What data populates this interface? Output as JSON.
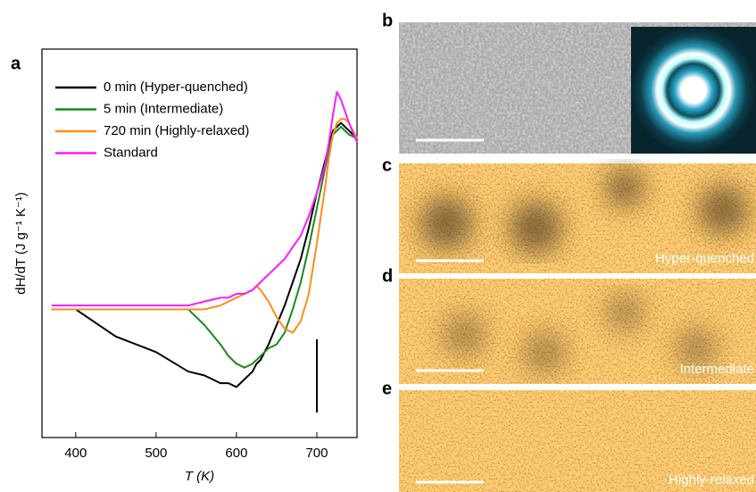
{
  "panel_labels": [
    "a",
    "b",
    "c",
    "d",
    "e"
  ],
  "image_captions": [
    "Hyper-quenched",
    "Intermediate",
    "Highly-relaxed"
  ],
  "chart_data": {
    "type": "line",
    "x_label": "T (K)",
    "y_label": "dH/dT (J g⁻¹ K⁻¹)",
    "xlim": [
      358,
      750
    ],
    "xticks": [
      400,
      500,
      600,
      700
    ],
    "ylim": [
      0,
      100
    ],
    "x": [
      370,
      400,
      450,
      500,
      540,
      560,
      580,
      590,
      600,
      610,
      620,
      625,
      630,
      640,
      650,
      660,
      670,
      680,
      690,
      700,
      710,
      715,
      720,
      725,
      730,
      735,
      740,
      750
    ],
    "series": [
      {
        "name": "0 min (Hyper-quenched)",
        "color": "#000000",
        "values": [
          33,
          33,
          26,
          22,
          17,
          16,
          14,
          14,
          13,
          15,
          17,
          19,
          20,
          24,
          29,
          34,
          40,
          46,
          54,
          63,
          71,
          75,
          79,
          80,
          81,
          80,
          79,
          77
        ]
      },
      {
        "name": "5 min (Intermediate)",
        "color": "#1a8a1a",
        "values": [
          33,
          33,
          33,
          33,
          33,
          29,
          24,
          21,
          19,
          18,
          19,
          20,
          21,
          23,
          24,
          27,
          33,
          40,
          49,
          59,
          69,
          74,
          78,
          79,
          80,
          79,
          78,
          77
        ]
      },
      {
        "name": "720 min (Highly-relaxed)",
        "color": "#ff8c1a",
        "values": [
          33,
          33,
          33,
          33,
          33,
          33,
          34,
          35,
          36,
          37,
          38,
          39,
          38,
          35,
          31,
          28,
          27,
          30,
          37,
          50,
          64,
          72,
          78,
          81,
          82,
          82,
          81,
          77
        ]
      },
      {
        "name": "Standard",
        "color": "#ff1aff",
        "values": [
          34,
          34,
          34,
          34,
          34,
          35,
          36,
          36,
          37,
          37,
          38,
          39,
          40,
          42,
          44,
          46,
          49,
          52,
          57,
          63,
          70,
          76,
          83,
          89,
          87,
          84,
          81,
          76
        ]
      }
    ]
  }
}
